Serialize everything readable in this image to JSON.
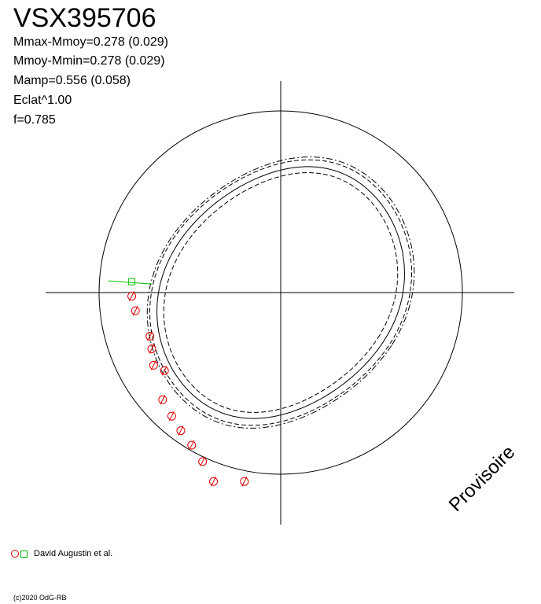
{
  "title": "VSX395706",
  "stats": [
    "Mmax-Mmoy=0.278 (0.029)",
    "Mmoy-Mmin=0.278 (0.029)",
    "Mamp=0.556 (0.058)",
    "Eclat^1.00",
    "f=0.785"
  ],
  "watermark": "Provisoire",
  "legend": {
    "label": "David Augustin et al."
  },
  "copyright": "(c)2020 OdG-RB",
  "colors": {
    "obs": "#e00000",
    "obs_green": "#00c000",
    "curve": "#000000"
  },
  "chart_data": {
    "type": "scatter",
    "title": "VSX395706",
    "grid": false,
    "circle_radius": 1.0,
    "curve_scale": 1.3,
    "points": [
      {
        "x": -0.82,
        "y": 0.06,
        "color": "green"
      },
      {
        "x": -0.82,
        "y": -0.02
      },
      {
        "x": -0.8,
        "y": -0.1
      },
      {
        "x": -0.72,
        "y": -0.24
      },
      {
        "x": -0.71,
        "y": -0.31
      },
      {
        "x": -0.7,
        "y": -0.4
      },
      {
        "x": -0.64,
        "y": -0.43
      },
      {
        "x": -0.65,
        "y": -0.59
      },
      {
        "x": -0.6,
        "y": -0.68
      },
      {
        "x": -0.55,
        "y": -0.76
      },
      {
        "x": -0.49,
        "y": -0.84
      },
      {
        "x": -0.43,
        "y": -0.93
      },
      {
        "x": -0.37,
        "y": -1.04
      },
      {
        "x": -0.2,
        "y": -1.04
      }
    ]
  }
}
